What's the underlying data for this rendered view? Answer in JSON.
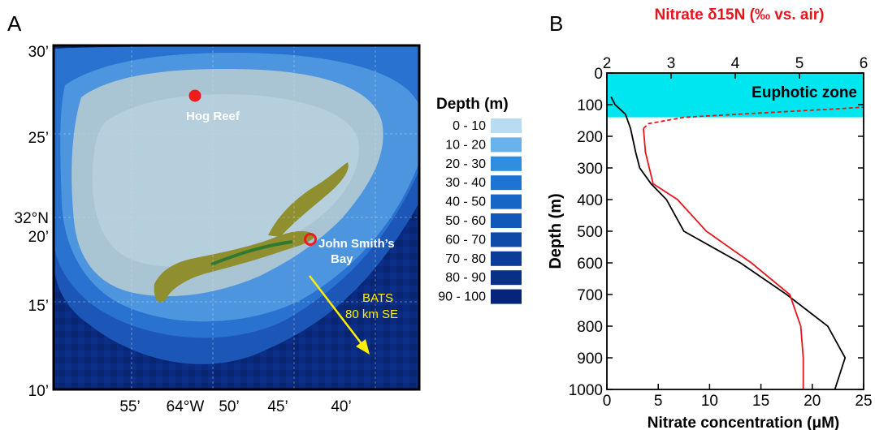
{
  "panel_a": {
    "letter": "A",
    "legend_title": "Depth (m)",
    "legend": [
      {
        "label": "0 - 10",
        "color": "#b8dcf2"
      },
      {
        "label": "10 - 20",
        "color": "#6ab2ec"
      },
      {
        "label": "20 - 30",
        "color": "#2f8ee0"
      },
      {
        "label": "30 - 40",
        "color": "#1e74d2"
      },
      {
        "label": "40 - 50",
        "color": "#1766c6"
      },
      {
        "label": "50 - 60",
        "color": "#1258b8"
      },
      {
        "label": "60 - 70",
        "color": "#0e4aa8"
      },
      {
        "label": "70 - 80",
        "color": "#0b3d98"
      },
      {
        "label": "80 - 90",
        "color": "#083088"
      },
      {
        "label": "90 - 100",
        "color": "#06257a"
      }
    ],
    "lat_labels": [
      "30’",
      "25’",
      "32°N",
      "20’",
      "15’",
      "10’"
    ],
    "lon_labels": [
      "55’",
      "64°W",
      "50’",
      "45’",
      "40’"
    ],
    "sites": {
      "hog_reef": "Hog Reef",
      "john_smith_line1": "John Smith’s",
      "john_smith_line2": "Bay",
      "bats_line1": "BATS",
      "bats_line2": "80 km SE"
    },
    "colors": {
      "site_marker": "#ee1c1c",
      "arrow": "#ffee00",
      "ocean_deep": "#07236e",
      "reef_flat": "#9cb8c8",
      "land": "#8a8a2a"
    }
  },
  "panel_b": {
    "letter": "B",
    "chart_data": {
      "type": "line",
      "ylabel": "Depth (m)",
      "ylim": [
        0,
        1000
      ],
      "yticks": [
        0,
        100,
        200,
        300,
        400,
        500,
        600,
        700,
        800,
        900,
        1000
      ],
      "bottom_axis": {
        "label": "Nitrate concentration (μM)",
        "lim": [
          0,
          25
        ],
        "ticks": [
          0,
          5,
          10,
          15,
          20,
          25
        ]
      },
      "top_axis": {
        "label": "Nitrate δ15N (‰ vs. air)",
        "lim": [
          2,
          6
        ],
        "ticks": [
          2,
          3,
          4,
          5,
          6
        ]
      },
      "euphotic_zone": {
        "label": "Euphotic zone",
        "depth_range": [
          0,
          140
        ],
        "color": "#00e6f0"
      },
      "series": [
        {
          "axis": "bottom",
          "color": "#000000",
          "points": [
            [
              0.4,
              75
            ],
            [
              0.8,
              100
            ],
            [
              1.8,
              130
            ],
            [
              2.3,
              175
            ],
            [
              2.8,
              250
            ],
            [
              3.2,
              300
            ],
            [
              4.3,
              350
            ],
            [
              5.8,
              400
            ],
            [
              7.5,
              500
            ],
            [
              13,
              600
            ],
            [
              17.5,
              700
            ],
            [
              21.5,
              800
            ],
            [
              23.2,
              900
            ],
            [
              22.2,
              1000
            ]
          ]
        },
        {
          "axis": "top",
          "color": "#e8141c",
          "points": [
            [
              2.57,
              175
            ],
            [
              2.6,
              250
            ],
            [
              2.72,
              350
            ],
            [
              3.1,
              400
            ],
            [
              3.55,
              500
            ],
            [
              4.25,
              600
            ],
            [
              4.85,
              700
            ],
            [
              5.02,
              800
            ],
            [
              5.06,
              900
            ],
            [
              5.06,
              1000
            ]
          ]
        },
        {
          "axis": "top",
          "color": "#e8141c",
          "style": "dashed",
          "points": [
            [
              2.57,
              175
            ],
            [
              2.65,
              160
            ],
            [
              3.2,
              140
            ],
            [
              4.5,
              125
            ],
            [
              5.6,
              113
            ],
            [
              6.0,
              108
            ]
          ]
        }
      ]
    }
  }
}
